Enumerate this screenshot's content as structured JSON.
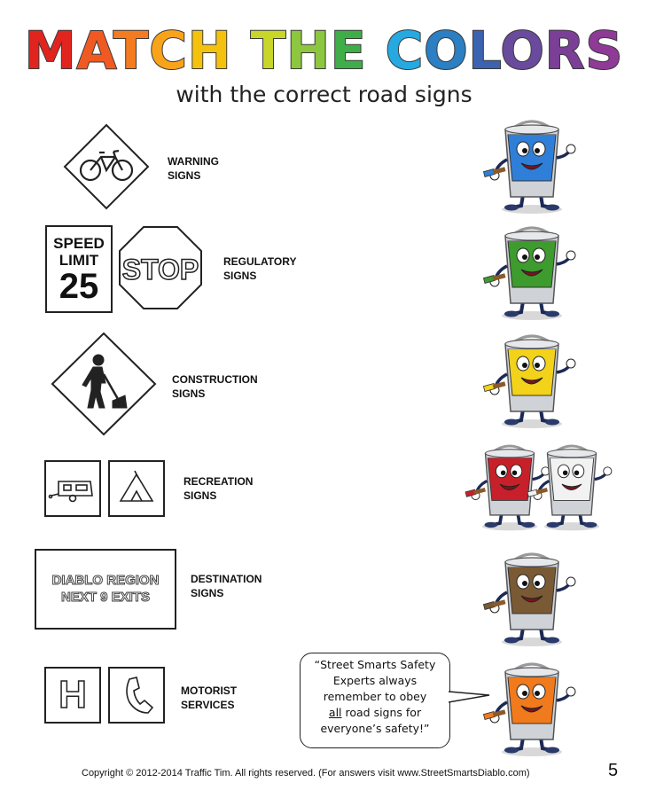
{
  "title": {
    "letters": [
      "M",
      "A",
      "T",
      "C",
      "H",
      " ",
      "T",
      "H",
      "E",
      " ",
      "C",
      "O",
      "L",
      "O",
      "R",
      "S"
    ],
    "letter_colors": [
      "#e2241f",
      "#f05a22",
      "#f47b20",
      "#f9a31a",
      "#f4c20d",
      "#ffffff",
      "#c8d629",
      "#8dc63f",
      "#3fae49",
      "#ffffff",
      "#26a9e0",
      "#2b7fc2",
      "#3b63b0",
      "#6a4a9c",
      "#7b3f98",
      "#8e3a96"
    ]
  },
  "subtitle": "with the correct road signs",
  "categories": [
    {
      "line1": "WARNING",
      "line2": "SIGNS"
    },
    {
      "line1": "REGULATORY",
      "line2": "SIGNS"
    },
    {
      "line1": "CONSTRUCTION",
      "line2": "SIGNS"
    },
    {
      "line1": "RECREATION",
      "line2": "SIGNS"
    },
    {
      "line1": "DESTINATION",
      "line2": "SIGNS"
    },
    {
      "line1": "MOTORIST",
      "line2": "SERVICES"
    }
  ],
  "signs": {
    "speed": {
      "line1": "SPEED",
      "line2": "LIMIT",
      "number": "25"
    },
    "stop": "STOP",
    "destination": {
      "line1": "DIABLO REGION",
      "line2": "NEXT 9 EXITS"
    },
    "hospital": "H",
    "icons": [
      "bicycle-icon",
      "worker-shovel-icon",
      "camper-trailer-icon",
      "tent-icon",
      "telephone-icon"
    ]
  },
  "buckets": {
    "colors": [
      "#2f7fd8",
      "#3e9b2e",
      "#f2d21a",
      "#c8202a",
      "#f2f2f2",
      "#7a5a34",
      "#f07a1c"
    ]
  },
  "bubble": {
    "line1": "“Street Smarts Safety",
    "line2": "Experts always",
    "line3": "remember to obey",
    "line4_u": "all",
    "line4_rest": " road signs for",
    "line5": "everyone’s safety!”"
  },
  "footer": "Copyright © 2012-2014 Traffic Tim.  All rights reserved.  (For answers visit www.StreetSmartsDiablo.com)",
  "page_number": "5"
}
